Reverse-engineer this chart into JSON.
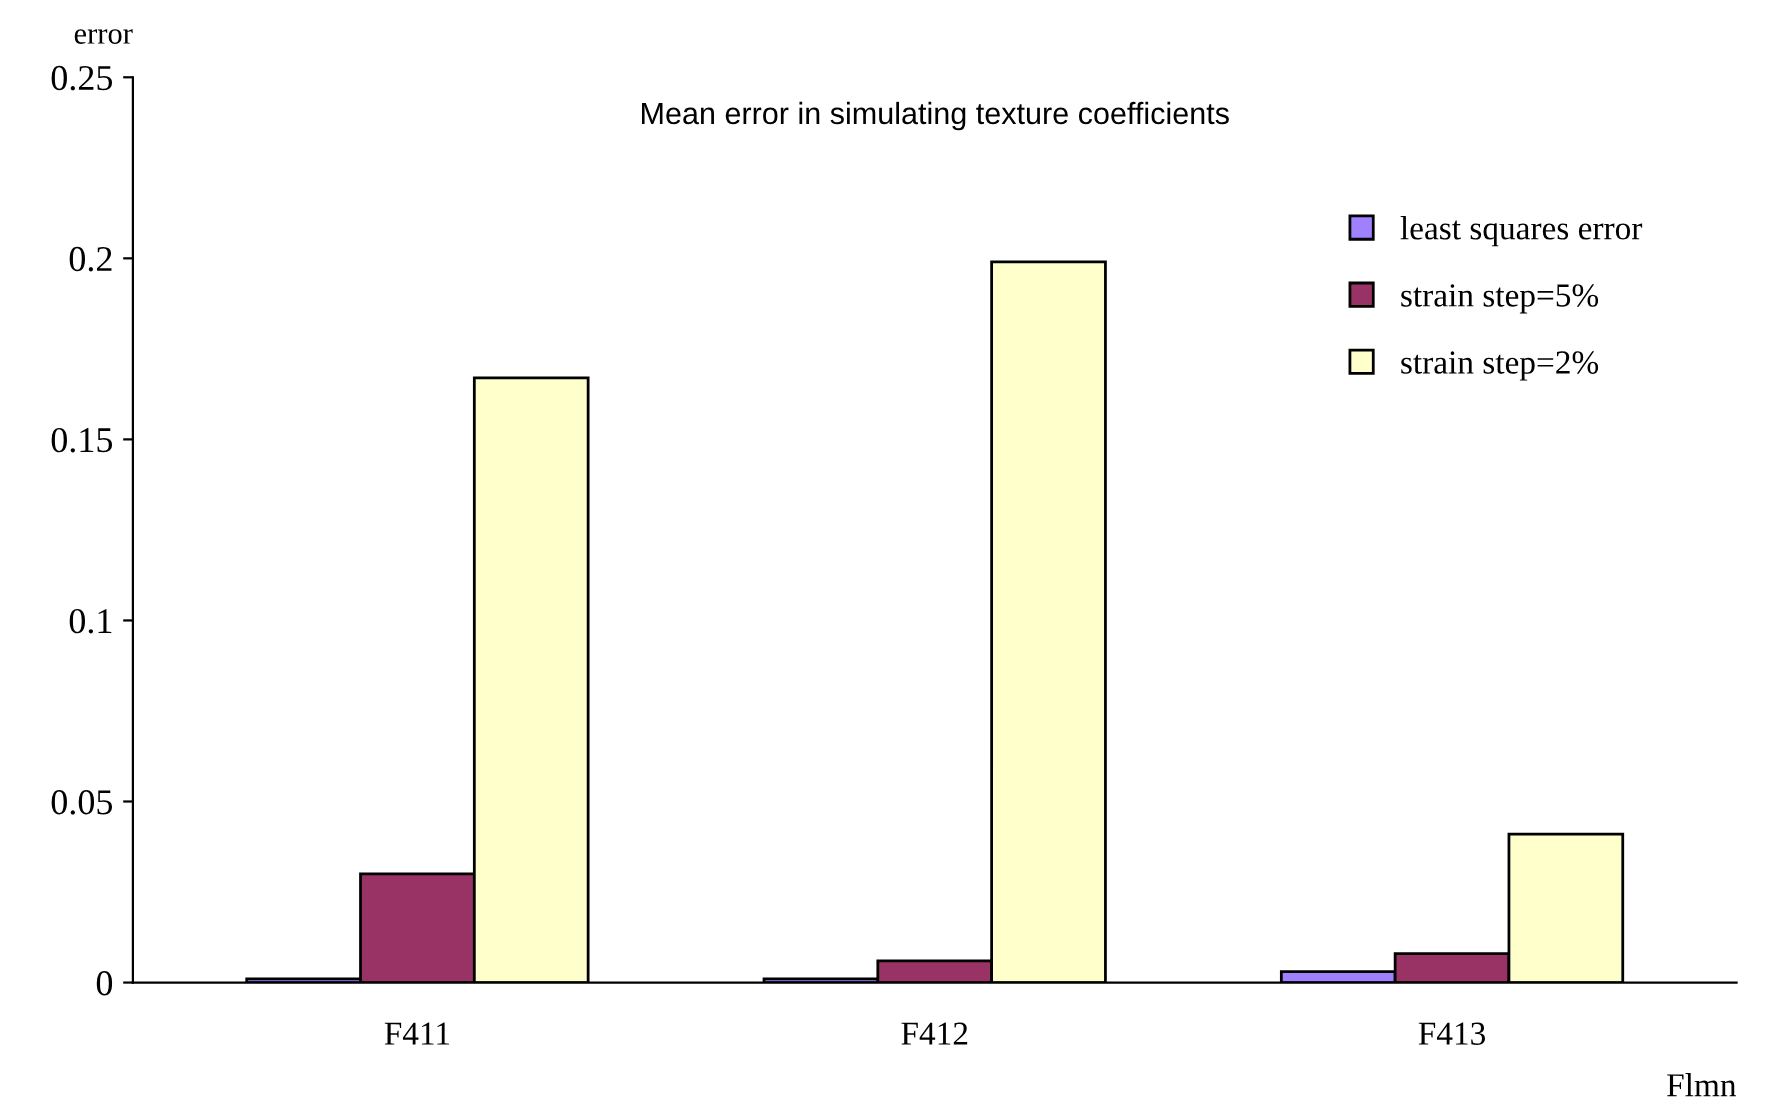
{
  "chart_data": {
    "type": "bar",
    "title": "Mean error in simulating texture coefficients",
    "xlabel": "Flmn",
    "ylabel": "error",
    "categories": [
      "F411",
      "F412",
      "F413"
    ],
    "series": [
      {
        "name": "least squares error",
        "color": "#9f80ff",
        "values": [
          0.001,
          0.001,
          0.003
        ]
      },
      {
        "name": "strain step=5%",
        "color": "#993366",
        "values": [
          0.03,
          0.006,
          0.008
        ]
      },
      {
        "name": "strain step=2%",
        "color": "#ffffcc",
        "values": [
          0.167,
          0.199,
          0.041
        ]
      }
    ],
    "ylim": [
      0,
      0.25
    ],
    "yticks": [
      0,
      0.05,
      0.1,
      0.15,
      0.2,
      0.25
    ],
    "grid": false,
    "legend": "top right"
  }
}
